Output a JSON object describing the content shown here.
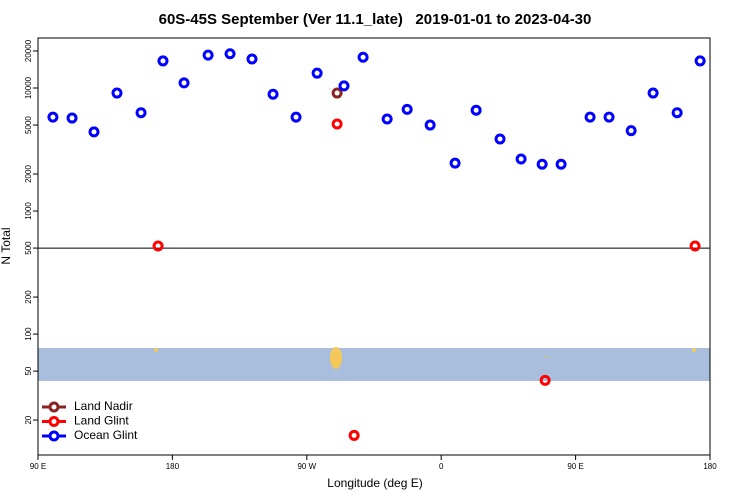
{
  "chart_data": {
    "type": "scatter",
    "title": "60S-45S September (Ver 11.1_late)   2019-01-01 to 2023-04-30",
    "x_label": "Longitude (deg E)",
    "y_label": "N Total",
    "log_y": true,
    "xlim": [
      90,
      540
    ],
    "ylim": [
      10.4,
      25500
    ],
    "xticks": [
      {
        "value": 90,
        "label": "90 E"
      },
      180,
      {
        "value": 270,
        "label": "90 W"
      },
      {
        "value": 360,
        "label": "0"
      },
      {
        "value": 450,
        "label": "90 E"
      },
      {
        "value": 540,
        "label": "180"
      }
    ],
    "yticks": [
      20,
      50,
      100,
      200,
      500,
      1000,
      2000,
      5000,
      10000,
      20000
    ],
    "reference_line": 500,
    "legend": "bottom-left",
    "series": [
      {
        "name": "Land Nadir",
        "color": "#8b2323",
        "x": [
          290.3
        ],
        "values": [
          9100
        ]
      },
      {
        "name": "Land Glint",
        "color": "#ff0000",
        "x": [
          170.4,
          290.3,
          429.6,
          301.7,
          530.0
        ],
        "values": [
          520,
          5100,
          42,
          15,
          520
        ]
      },
      {
        "name": "Ocean Glint",
        "color": "#0000ff",
        "x": [
          100.0,
          112.8,
          127.5,
          142.9,
          159.0,
          173.7,
          187.8,
          203.9,
          218.6,
          233.3,
          247.4,
          262.8,
          276.9,
          294.9,
          307.7,
          323.8,
          337.2,
          352.6,
          369.3,
          383.4,
          399.4,
          413.5,
          427.6,
          440.3,
          459.7,
          472.4,
          487.2,
          501.9,
          518.0,
          533.4
        ],
        "values": [
          5800,
          5700,
          4400,
          9100,
          6300,
          16600,
          11000,
          18500,
          19000,
          17200,
          8900,
          5800,
          13200,
          10400,
          17800,
          5600,
          6700,
          5000,
          2450,
          6600,
          3850,
          2650,
          2400,
          2400,
          5800,
          5800,
          4500,
          9100,
          6300,
          16600
        ]
      }
    ]
  }
}
